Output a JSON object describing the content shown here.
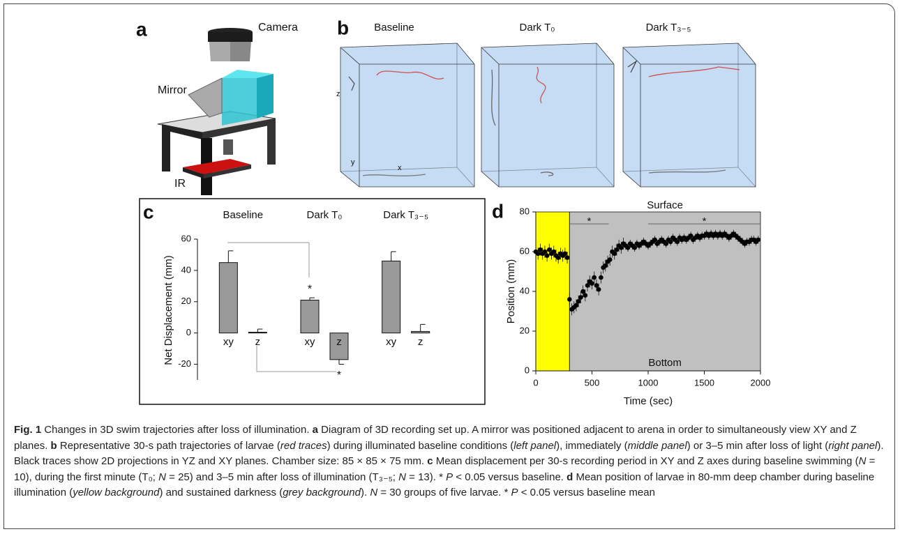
{
  "panel_a": {
    "label": "a",
    "camera": "Camera",
    "mirror": "Mirror",
    "ir": "IR"
  },
  "panel_b": {
    "label": "b",
    "titles": [
      "Baseline",
      "Dark T₀",
      "Dark T₃₋₅"
    ],
    "axes": {
      "z": "z",
      "y": "y",
      "x": "x"
    }
  },
  "chart_data": [
    {
      "type": "bar",
      "panel_label": "c",
      "ylabel": "Net Displacement (mm)",
      "categories": [
        "Baseline",
        "Dark T₀",
        "Dark T₃₋₅"
      ],
      "series": [
        {
          "name": "xy",
          "color": "#999999",
          "values": [
            45,
            21,
            46
          ],
          "errors": [
            7.5,
            1.5,
            6
          ]
        },
        {
          "name": "z",
          "color": "#999999",
          "values": [
            0.5,
            -17,
            1
          ],
          "errors": [
            2,
            3,
            4.5
          ]
        }
      ],
      "annotations": [
        {
          "series": 0,
          "index": 1,
          "label": "*"
        },
        {
          "series": 1,
          "index": 1,
          "label": "*"
        }
      ],
      "ylim": [
        -30,
        60
      ],
      "yticks": [
        -20,
        0,
        20,
        40,
        60
      ]
    },
    {
      "type": "scatter",
      "panel_label": "d",
      "xlabel": "Time (sec)",
      "ylabel": "Position (mm)",
      "top_label": "Surface",
      "bottom_label": "Bottom",
      "color": "#000000",
      "regions": [
        {
          "from": 0,
          "to": 300,
          "color": "#ffff00"
        },
        {
          "from": 300,
          "to": 2000,
          "color": "#c0c0c0"
        }
      ],
      "sig_lines": [
        {
          "from": 300,
          "to": 650,
          "y": 74,
          "label": "*"
        },
        {
          "from": 1000,
          "to": 2000,
          "y": 74,
          "label": "*"
        }
      ],
      "x": [
        0,
        20,
        40,
        60,
        80,
        100,
        120,
        140,
        160,
        180,
        200,
        220,
        240,
        260,
        280,
        300,
        320,
        340,
        360,
        380,
        400,
        420,
        440,
        460,
        480,
        500,
        520,
        540,
        560,
        580,
        600,
        620,
        640,
        660,
        680,
        700,
        720,
        740,
        760,
        780,
        800,
        820,
        840,
        860,
        880,
        900,
        920,
        940,
        960,
        980,
        1000,
        1020,
        1040,
        1060,
        1080,
        1100,
        1120,
        1140,
        1160,
        1180,
        1200,
        1220,
        1240,
        1260,
        1280,
        1300,
        1320,
        1340,
        1360,
        1380,
        1400,
        1420,
        1440,
        1460,
        1480,
        1500,
        1520,
        1540,
        1560,
        1580,
        1600,
        1620,
        1640,
        1660,
        1680,
        1700,
        1720,
        1740,
        1760,
        1780,
        1800,
        1820,
        1840,
        1860,
        1880,
        1900,
        1920,
        1940,
        1960,
        1980
      ],
      "values": [
        60,
        59,
        61,
        59,
        60,
        58,
        61,
        59,
        60,
        58,
        57,
        59,
        58,
        59,
        57,
        36,
        31,
        32,
        33,
        35,
        37,
        40,
        38,
        43,
        45,
        44,
        47,
        43,
        41,
        47,
        52,
        53,
        55,
        56,
        60,
        59,
        61,
        63,
        62,
        64,
        63,
        62,
        64,
        63,
        62,
        64,
        63,
        64,
        65,
        64,
        63,
        64,
        65,
        66,
        64,
        65,
        66,
        65,
        64,
        66,
        65,
        67,
        66,
        65,
        67,
        66,
        67,
        66,
        67,
        68,
        66,
        67,
        68,
        67,
        68,
        68,
        69,
        68,
        69,
        68,
        69,
        68,
        69,
        68,
        69,
        68,
        67,
        68,
        69,
        68,
        67,
        66,
        65,
        64,
        65,
        65,
        66,
        66,
        65,
        66
      ],
      "errors": [
        3,
        3,
        3,
        3,
        3,
        3,
        3,
        3,
        3,
        3,
        3,
        3,
        3,
        3,
        3,
        3,
        3,
        3,
        3,
        3,
        3,
        3,
        3,
        3,
        3,
        3,
        3,
        3,
        3,
        3,
        3,
        3,
        3,
        3,
        3,
        3,
        3,
        3,
        3,
        3,
        2,
        2,
        2,
        2,
        2,
        2,
        2,
        2,
        2,
        2,
        2,
        2,
        2,
        2,
        2,
        2,
        2,
        2,
        2,
        2,
        2,
        2,
        2,
        2,
        2,
        2,
        2,
        2,
        2,
        2,
        2,
        2,
        2,
        2,
        2,
        2,
        2,
        2,
        2,
        2,
        2,
        2,
        2,
        2,
        2,
        2,
        2,
        2,
        2,
        2,
        2,
        2,
        2,
        2,
        2,
        2,
        2,
        2,
        2,
        2
      ],
      "xlim": [
        0,
        2000
      ],
      "xticks": [
        0,
        500,
        1000,
        1500,
        2000
      ],
      "ylim": [
        0,
        80
      ],
      "yticks": [
        0,
        20,
        40,
        60,
        80
      ]
    }
  ],
  "caption": [
    {
      "text": "Fig. 1",
      "style": "bold"
    },
    {
      "text": " Changes in 3D swim trajectories after loss of illumination. "
    },
    {
      "text": "a",
      "style": "bold"
    },
    {
      "text": " Diagram of 3D recording set up. A mirror was positioned adjacent to arena in order to simultaneously view XY and Z planes. "
    },
    {
      "text": "b",
      "style": "bold"
    },
    {
      "text": " Representative 30-s path trajectories of larvae ("
    },
    {
      "text": "red traces",
      "style": "italic"
    },
    {
      "text": ") during illuminated baseline conditions ("
    },
    {
      "text": "left panel",
      "style": "italic"
    },
    {
      "text": "), immediately ("
    },
    {
      "text": "middle panel",
      "style": "italic"
    },
    {
      "text": ") or 3–5 min after loss of light ("
    },
    {
      "text": "right panel",
      "style": "italic"
    },
    {
      "text": "). Black traces show 2D projections in YZ and XY planes. Chamber size: 85 × 85 × 75 mm. "
    },
    {
      "text": "c",
      "style": "bold"
    },
    {
      "text": " Mean displacement per 30-s recording period in XY and Z axes during baseline swimming ("
    },
    {
      "text": "N",
      "style": "italic"
    },
    {
      "text": " = 10), during the first minute (T₀; "
    },
    {
      "text": "N",
      "style": "italic"
    },
    {
      "text": " = 25) and 3–5 min after loss of illumination (T₃₋₅; "
    },
    {
      "text": "N",
      "style": "italic"
    },
    {
      "text": " = 13). * "
    },
    {
      "text": "P",
      "style": "italic"
    },
    {
      "text": " < 0.05 versus baseline. "
    },
    {
      "text": "d",
      "style": "bold"
    },
    {
      "text": " Mean position of larvae in 80-mm deep chamber during baseline illumination ("
    },
    {
      "text": "yellow background",
      "style": "italic"
    },
    {
      "text": ") and sustained darkness ("
    },
    {
      "text": "grey background",
      "style": "italic"
    },
    {
      "text": "). "
    },
    {
      "text": "N",
      "style": "italic"
    },
    {
      "text": " = 30 groups of five larvae. * "
    },
    {
      "text": "P",
      "style": "italic"
    },
    {
      "text": " < 0.05 versus baseline mean"
    }
  ]
}
